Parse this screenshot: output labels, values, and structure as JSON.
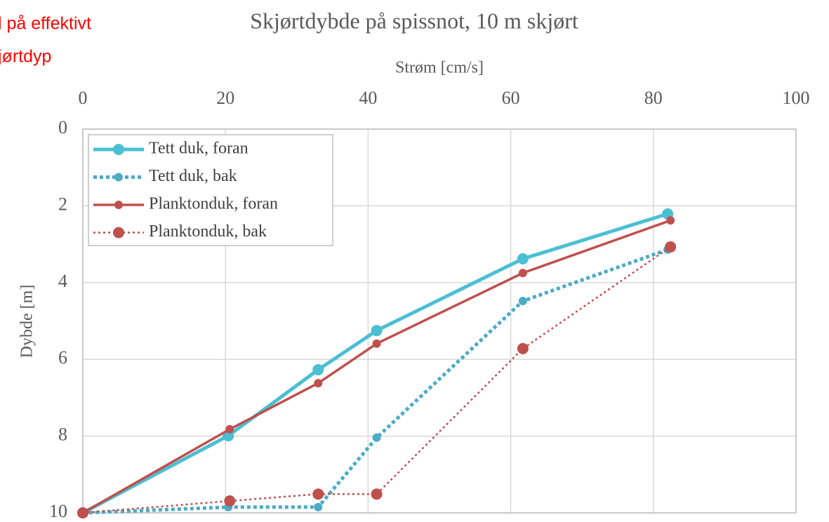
{
  "chart_data": {
    "type": "line",
    "title": "Skjørtdybde på spissnot, 10 m skjørt",
    "x_label": "Strøm [cm/s]",
    "y_label": "Dybde [m]",
    "annotations": [
      "l på effektivt",
      "jørtdyp"
    ],
    "x_axis_position": "top",
    "y_inverted": true,
    "xlim": [
      0,
      100
    ],
    "xticks": [
      0,
      20,
      40,
      60,
      80,
      100
    ],
    "ylim": [
      0,
      10
    ],
    "yticks": [
      0,
      2,
      4,
      6,
      8,
      10
    ],
    "grid": true,
    "legend": "upper left",
    "series": [
      {
        "name": "Tett duk, foran",
        "color": "#4bbfd3",
        "line_style": "solid",
        "x": [
          0,
          20.4,
          33.0,
          41.2,
          61.7,
          82.0
        ],
        "values": [
          10,
          7.99,
          6.27,
          5.25,
          3.38,
          2.21
        ]
      },
      {
        "name": "Tett duk, bak",
        "color": "#4bacc6",
        "line_style": "dotted",
        "x": [
          0,
          20.4,
          33.0,
          41.2,
          61.7,
          82.0
        ],
        "values": [
          10,
          9.85,
          9.85,
          8.04,
          4.48,
          3.14
        ]
      },
      {
        "name": "Planktonduk, foran",
        "color": "#c0504d",
        "line_style": "solid",
        "x": [
          0,
          20.6,
          33.0,
          41.2,
          61.7,
          82.4
        ],
        "values": [
          10,
          7.82,
          6.62,
          5.59,
          3.75,
          2.38
        ]
      },
      {
        "name": "Planktonduk, bak",
        "color": "#c0504d",
        "line_style": "dotted",
        "x": [
          0,
          20.6,
          33.0,
          41.2,
          61.7,
          82.4
        ],
        "values": [
          10,
          9.69,
          9.51,
          9.51,
          5.72,
          3.07
        ]
      }
    ]
  }
}
